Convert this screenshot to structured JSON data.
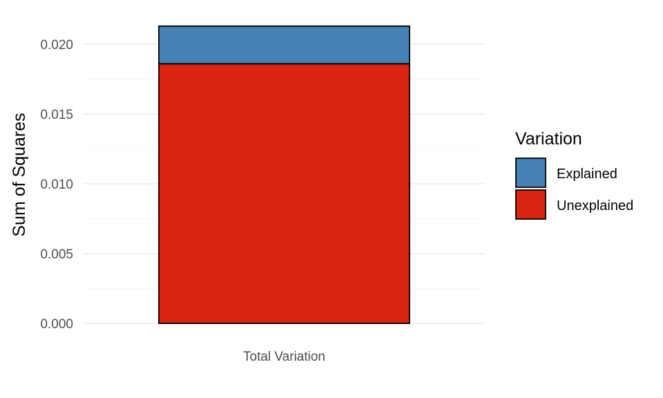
{
  "chart_data": {
    "type": "bar",
    "stacked": true,
    "categories": [
      "Total Variation"
    ],
    "series": [
      {
        "name": "Unexplained",
        "values": [
          0.0186
        ],
        "color": "#DA2310"
      },
      {
        "name": "Explained",
        "values": [
          0.0027
        ],
        "color": "#4682B4"
      }
    ],
    "title": "",
    "xlabel": "",
    "ylabel": "Sum of Squares",
    "ylim": [
      0,
      0.0213
    ],
    "yticks": [
      "0.000",
      "0.005",
      "0.010",
      "0.015",
      "0.020"
    ],
    "ytick_values": [
      0,
      0.005,
      0.01,
      0.015,
      0.02
    ],
    "grid": true,
    "legend": {
      "title": "Variation",
      "placement": "right",
      "entries": [
        "Explained",
        "Unexplained"
      ]
    }
  }
}
